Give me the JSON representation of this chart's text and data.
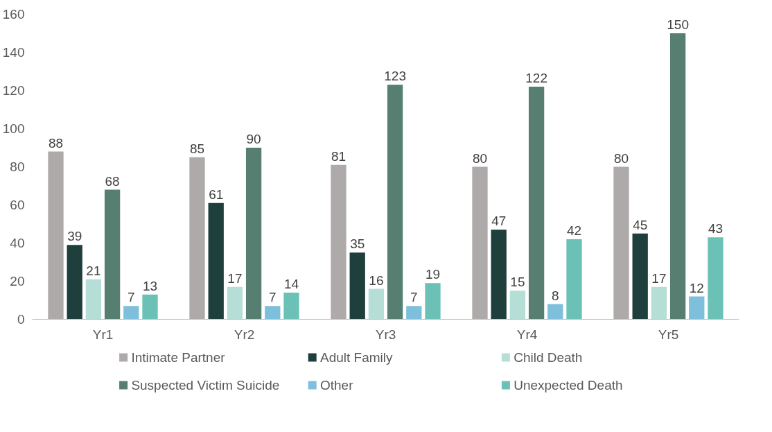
{
  "chart_data": {
    "type": "bar",
    "categories": [
      "Yr1",
      "Yr2",
      "Yr3",
      "Yr4",
      "Yr5"
    ],
    "series": [
      {
        "name": "Intimate Partner",
        "color": "#aeaaaa",
        "values": [
          88,
          85,
          81,
          80,
          80
        ]
      },
      {
        "name": "Adult Family",
        "color": "#1e3f3b",
        "values": [
          39,
          61,
          35,
          47,
          45
        ]
      },
      {
        "name": "Child Death",
        "color": "#b4ded6",
        "values": [
          21,
          17,
          16,
          15,
          17
        ]
      },
      {
        "name": "Suspected Victim Suicide",
        "color": "#567f72",
        "values": [
          68,
          90,
          123,
          122,
          150
        ]
      },
      {
        "name": "Other",
        "color": "#7ebfdc",
        "values": [
          7,
          7,
          7,
          8,
          12
        ]
      },
      {
        "name": "Unexpected Death",
        "color": "#6cc1b6",
        "values": [
          13,
          14,
          19,
          42,
          43
        ]
      }
    ],
    "ylim": [
      0,
      160
    ],
    "yticks": [
      0,
      20,
      40,
      60,
      80,
      100,
      120,
      140,
      160
    ],
    "grid": false,
    "legend": "bottom",
    "data_labels": true
  }
}
